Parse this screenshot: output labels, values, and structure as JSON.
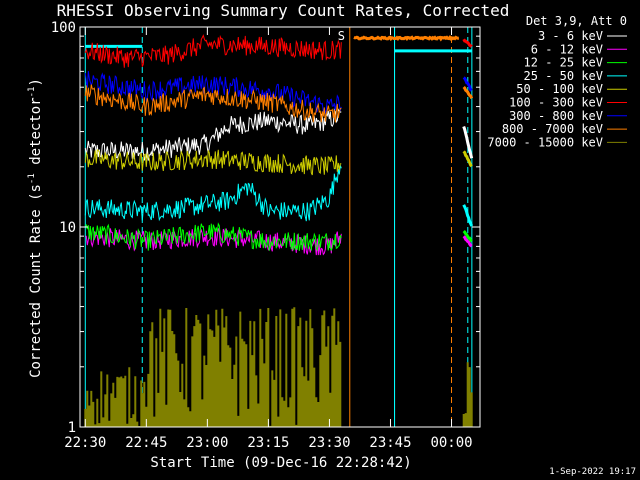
{
  "chart_data": {
    "type": "line",
    "title": "RHESSI Observing Summary Count Rates, Corrected",
    "xlabel": "Start Time (09-Dec-16 22:28:42)",
    "ylabel": "Corrected Count Rate (s⁻¹ detector⁻¹)",
    "ylabel_main": "Corrected Count Rate (s",
    "ylabel_sup1": "-1",
    "ylabel_mid": " detector",
    "ylabel_sup2": "-1",
    "ylabel_end": ")",
    "y_scale": "log",
    "ylim": [
      1,
      100
    ],
    "xlim": [
      "22:28:42",
      "00:07:00"
    ],
    "x_ticks": [
      "22:30",
      "22:45",
      "23:00",
      "23:15",
      "23:30",
      "23:45",
      "00:00"
    ],
    "y_ticks": [
      "1",
      "10",
      "100"
    ],
    "legend_title": "Det 3,9, Att 0",
    "legend_position": "top-right",
    "grid": false,
    "footer": "1-Sep-2022 19:17",
    "series": [
      {
        "name": "3 - 6 keV",
        "color": "#ffffff",
        "segments": [
          {
            "t": [
              "22:30",
              "22:45",
              "23:00",
              "23:05",
              "23:15",
              "23:25",
              "23:33"
            ],
            "v": [
              24,
              24,
              26,
              32,
              34,
              32,
              36
            ]
          },
          {
            "t": [
              "00:03",
              "00:05"
            ],
            "v": [
              32,
              22
            ]
          }
        ]
      },
      {
        "name": "6 - 12 keV",
        "color": "#ff00ff",
        "segments": [
          {
            "t": [
              "22:30",
              "22:45",
              "23:00",
              "23:15",
              "23:30",
              "23:33"
            ],
            "v": [
              9,
              8.5,
              9,
              8.5,
              8,
              9
            ]
          },
          {
            "t": [
              "00:03",
              "00:05"
            ],
            "v": [
              9,
              8
            ]
          }
        ]
      },
      {
        "name": "12 - 25 keV",
        "color": "#00ff00",
        "segments": [
          {
            "t": [
              "22:30",
              "22:45",
              "23:00",
              "23:15",
              "23:30",
              "23:33"
            ],
            "v": [
              9.5,
              8.5,
              9.5,
              8.5,
              8.5,
              9
            ]
          },
          {
            "t": [
              "00:03",
              "00:05"
            ],
            "v": [
              9.5,
              8.5
            ]
          }
        ]
      },
      {
        "name": "25 - 50 keV",
        "color": "#00ffff",
        "segments": [
          {
            "t": [
              "22:30",
              "22:45",
              "22:55",
              "23:00",
              "23:05",
              "23:10",
              "23:15",
              "23:25",
              "23:30",
              "23:33"
            ],
            "v": [
              12.5,
              12,
              12.5,
              13,
              13.5,
              16,
              12,
              12,
              14,
              22
            ]
          },
          {
            "t": [
              "00:03",
              "00:05"
            ],
            "v": [
              13,
              10
            ]
          }
        ]
      },
      {
        "name": "50 - 100 keV",
        "color": "#cccc00",
        "segments": [
          {
            "t": [
              "22:30",
              "22:45",
              "23:00",
              "23:15",
              "23:30",
              "23:33"
            ],
            "v": [
              22,
              21,
              22,
              21,
              20,
              21
            ]
          },
          {
            "t": [
              "00:03",
              "00:05"
            ],
            "v": [
              24,
              20
            ]
          }
        ]
      },
      {
        "name": "100 - 300 keV",
        "color": "#ff0000",
        "segments": [
          {
            "t": [
              "22:30",
              "22:40",
              "22:50",
              "23:00",
              "23:15",
              "23:30",
              "23:33"
            ],
            "v": [
              76,
              70,
              72,
              82,
              80,
              76,
              78
            ]
          },
          {
            "t": [
              "00:03",
              "00:05"
            ],
            "v": [
              86,
              80
            ]
          }
        ]
      },
      {
        "name": "300 - 800 keV",
        "color": "#0000ff",
        "segments": [
          {
            "t": [
              "22:30",
              "22:45",
              "23:00",
              "23:15",
              "23:30",
              "23:33"
            ],
            "v": [
              54,
              48,
              52,
              48,
              40,
              42
            ]
          },
          {
            "t": [
              "00:03",
              "00:05"
            ],
            "v": [
              56,
              48
            ]
          }
        ]
      },
      {
        "name": "800 - 7000 keV",
        "color": "#ff7f00",
        "segments": [
          {
            "t": [
              "22:30",
              "22:45",
              "23:00",
              "23:15",
              "23:30",
              "23:33"
            ],
            "v": [
              47,
              40,
              46,
              42,
              36,
              38
            ]
          },
          {
            "t": [
              "23:36",
              "00:02"
            ],
            "v": [
              88,
              88
            ]
          },
          {
            "t": [
              "00:03",
              "00:05"
            ],
            "v": [
              50,
              44
            ]
          }
        ]
      },
      {
        "name": "7000 - 15000 keV",
        "color": "#808000",
        "segments": []
      }
    ],
    "attenuator_flags": [
      {
        "t": [
          "22:30",
          "22:44"
        ],
        "v": [
          80,
          80
        ],
        "color": "#00ffff"
      },
      {
        "t": [
          "23:46",
          "00:05"
        ],
        "v": [
          76,
          76
        ],
        "color": "#00ffff"
      }
    ],
    "vertical_markers": [
      {
        "t": "22:30",
        "style": "solid",
        "color": "#00ffff"
      },
      {
        "t": "22:44",
        "style": "dashed",
        "color": "#00ffff"
      },
      {
        "t": "23:35",
        "style": "solid",
        "color": "#ff7f00"
      },
      {
        "t": "23:46",
        "style": "solid",
        "color": "#00ffff"
      },
      {
        "t": "23:46",
        "style": "solid",
        "color": "#00ffff"
      },
      {
        "t": "00:00",
        "style": "dashed",
        "color": "#ff7f00"
      },
      {
        "t": "00:04",
        "style": "dashed",
        "color": "#00ffff"
      },
      {
        "t": "00:05",
        "style": "solid",
        "color": "#00ffff"
      }
    ],
    "annotations": [
      {
        "text": "S",
        "t": "23:35",
        "v": 91,
        "color": "#ff7f00"
      }
    ]
  }
}
